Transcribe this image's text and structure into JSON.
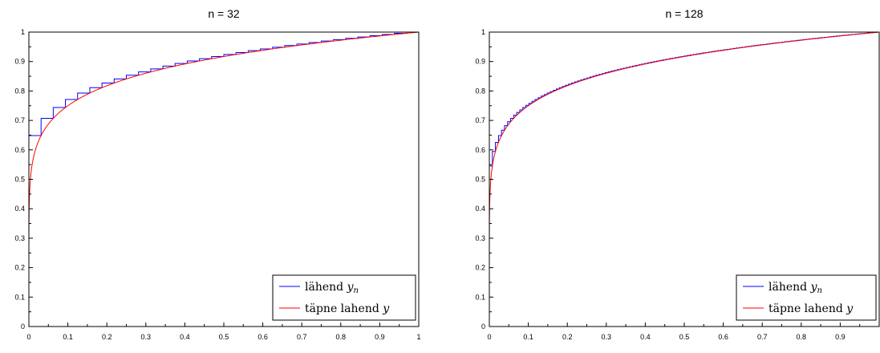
{
  "chart_data": [
    {
      "type": "line",
      "title": "n = 32",
      "xlim": [
        0,
        1
      ],
      "ylim": [
        0,
        1
      ],
      "xticks": [
        "0",
        "0.1",
        "0.2",
        "0.3",
        "0.4",
        "0.5",
        "0.6",
        "0.7",
        "0.8",
        "0.9",
        "1"
      ],
      "yticks": [
        "0",
        "0.1",
        "0.2",
        "0.3",
        "0.4",
        "0.5",
        "0.6",
        "0.7",
        "0.8",
        "0.9",
        "1"
      ],
      "grid": false,
      "legend_position": "bottom-right",
      "series": [
        {
          "name": "lähend",
          "name_sub": "y",
          "name_subscript": "n",
          "color": "#0000ff",
          "style": "step",
          "n": 32,
          "function": "x^(1/8)"
        },
        {
          "name": "täpne lahend",
          "name_sub": "y",
          "name_subscript": "",
          "color": "#ff0000",
          "style": "line",
          "function": "x^(1/8)"
        }
      ]
    },
    {
      "type": "line",
      "title": "n = 128",
      "xlim": [
        0,
        1
      ],
      "ylim": [
        0,
        1
      ],
      "xticks": [
        "0",
        "0.1",
        "0.2",
        "0.3",
        "0.4",
        "0.5",
        "0.6",
        "0.7",
        "0.8",
        "0.9",
        ""
      ],
      "yticks": [
        "0",
        "0.1",
        "0.2",
        "0.3",
        "0.4",
        "0.5",
        "0.6",
        "0.7",
        "0.8",
        "0.9",
        "1"
      ],
      "grid": false,
      "legend_position": "bottom-right",
      "series": [
        {
          "name": "lähend",
          "name_sub": "y",
          "name_subscript": "n",
          "color": "#0000ff",
          "style": "step",
          "n": 128,
          "function": "x^(1/8)"
        },
        {
          "name": "täpne lahend",
          "name_sub": "y",
          "name_subscript": "",
          "color": "#ff0000",
          "style": "line",
          "function": "x^(1/8)"
        }
      ]
    }
  ]
}
